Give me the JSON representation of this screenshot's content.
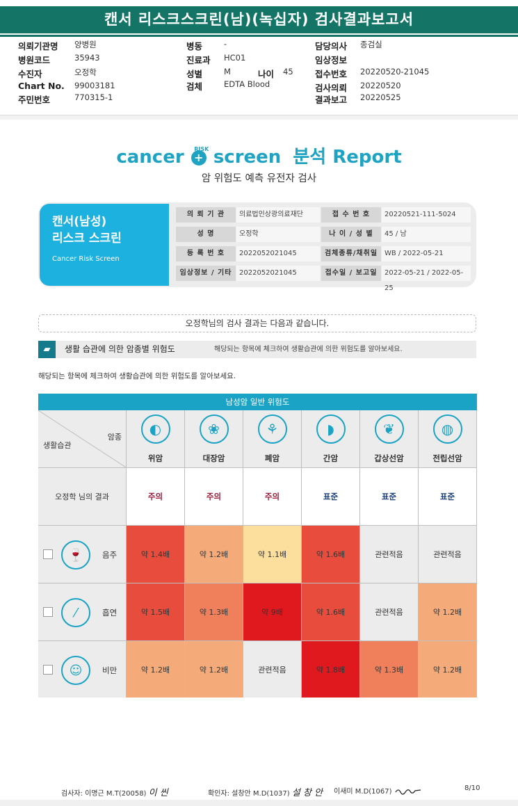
{
  "header": {
    "title": "캔서 리스크스크린(남)(녹십자) 검사결과보고서"
  },
  "patient_info": {
    "col1": [
      {
        "label": "의뢰기관명",
        "value": "양병원"
      },
      {
        "label": "병원코드",
        "value": "35943"
      },
      {
        "label": "수진자",
        "value": "오정학"
      },
      {
        "label": "Chart No.",
        "value": "99003181"
      },
      {
        "label": "주민번호",
        "value": "770315-1"
      }
    ],
    "col2": [
      {
        "label": "병동",
        "value": "-"
      },
      {
        "label": "진료과",
        "value": "HC01"
      },
      {
        "label": "성별",
        "value": "M"
      },
      {
        "label": "검체",
        "value": "EDTA Blood"
      }
    ],
    "age": {
      "label": "나이",
      "value": "45"
    },
    "col3": [
      {
        "label": "담당의사",
        "value": "종검실"
      },
      {
        "label": "임상정보",
        "value": ""
      },
      {
        "label": "접수번호",
        "value": "20220520-21045"
      },
      {
        "label": "검사의뢰",
        "value": "20220520"
      },
      {
        "label": "결과보고",
        "value": "20220525"
      }
    ]
  },
  "logo": {
    "cancer": "cancer",
    "risk": "RISK",
    "screen": "screen",
    "report": "분석 Report"
  },
  "subtitle": "암 위험도 예측 유전자 검사",
  "card": {
    "title1": "캔서(남성)",
    "title2": "리스크 스크린",
    "title_en": "Cancer Risk Screen",
    "rows": [
      {
        "k1": "의 뢰 기 관",
        "v1": "의료법인상광의료재단",
        "k2": "접 수 번 호",
        "v2": "20220521-111-5024"
      },
      {
        "k1": "성 명",
        "v1": "오정학",
        "k2": "나 이 / 성 별",
        "v2": "45 / 남"
      },
      {
        "k1": "등 록 번 호",
        "v1": "2022052021045",
        "k2": "검체종류/채취일",
        "v2": "WB / 2022-05-21"
      },
      {
        "k1": "임상정보 / 기타",
        "v1": "2022052021045",
        "k2": "접수일 / 보고일",
        "v2": "2022-05-21 / 2022-05-25"
      }
    ]
  },
  "banner": "오정학님의 검사 결과는 다음과 같습니다.",
  "section": {
    "title": "생활 습관에 의한 암종별 위험도",
    "hint": "해당되는 항목에 체크하여 생활습관에 의한 위험도를 알아보세요."
  },
  "note": "해당되는 항목에 체크하여 생활습관에 의한 위험도를 알아보세요.",
  "table": {
    "title": "남성암 일반 위험도",
    "corner_top": "암종",
    "corner_bottom": "생활습관",
    "result_label": "오정학 님의 결과",
    "cancers": [
      {
        "name": "위암",
        "icon": "stomach-icon",
        "result": "주의",
        "level": "caution"
      },
      {
        "name": "대장암",
        "icon": "colon-icon",
        "result": "주의",
        "level": "caution"
      },
      {
        "name": "폐암",
        "icon": "lung-icon",
        "result": "주의",
        "level": "caution"
      },
      {
        "name": "간암",
        "icon": "liver-icon",
        "result": "표준",
        "level": "standard"
      },
      {
        "name": "갑상선암",
        "icon": "thyroid-icon",
        "result": "표준",
        "level": "standard"
      },
      {
        "name": "전립선암",
        "icon": "prostate-icon",
        "result": "표준",
        "level": "standard"
      }
    ],
    "habits": [
      {
        "name": "음주",
        "icon": "drinking-icon",
        "cells": [
          {
            "text": "약 1.4배",
            "color": "#e84c3d"
          },
          {
            "text": "약 1.2배",
            "color": "#f5aa7a"
          },
          {
            "text": "약 1.1배",
            "color": "#fcdf9c"
          },
          {
            "text": "약 1.6배",
            "color": "#e84c3d"
          },
          {
            "text": "관련적음",
            "color": "#ececec"
          },
          {
            "text": "관련적음",
            "color": "#ececec"
          }
        ]
      },
      {
        "name": "흡연",
        "icon": "smoking-icon",
        "cells": [
          {
            "text": "약 1.5배",
            "color": "#e84c3d"
          },
          {
            "text": "약 1.3배",
            "color": "#f0805b"
          },
          {
            "text": "약 9배",
            "color": "#e0191e"
          },
          {
            "text": "약 1.6배",
            "color": "#e84c3d"
          },
          {
            "text": "관련적음",
            "color": "#ececec"
          },
          {
            "text": "약 1.2배",
            "color": "#f5aa7a"
          }
        ]
      },
      {
        "name": "비만",
        "icon": "obesity-icon",
        "cells": [
          {
            "text": "약 1.2배",
            "color": "#f5aa7a"
          },
          {
            "text": "약 1.2배",
            "color": "#f5aa7a"
          },
          {
            "text": "관련적음",
            "color": "#ececec"
          },
          {
            "text": "약 1.8배",
            "color": "#e0191e"
          },
          {
            "text": "약 1.3배",
            "color": "#f0805b"
          },
          {
            "text": "약 1.2배",
            "color": "#f5aa7a"
          }
        ]
      }
    ]
  },
  "footer": {
    "tester": "검사자: 이명근 M.T(20058)",
    "tester_sig": "이 씬",
    "checker": "확인자: 설창안 M.D(1037)",
    "checker_sig": "설 창 안",
    "doctor": "이새미 M.D(1067)",
    "page": "8/10"
  }
}
